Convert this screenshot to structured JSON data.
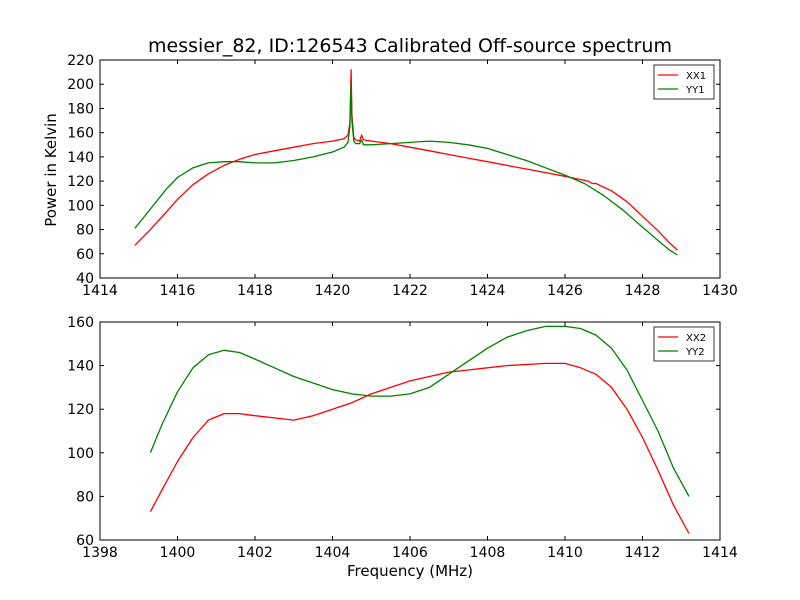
{
  "figure": {
    "title": "messier_82, ID:126543 Calibrated Off-source spectrum",
    "ylabel": "Power in Kelvin",
    "xlabel": "Frequency (MHz)"
  },
  "chart_data": [
    {
      "type": "line",
      "xlim": [
        1414,
        1430
      ],
      "ylim": [
        40,
        220
      ],
      "xticks": [
        "1414",
        "1416",
        "1418",
        "1420",
        "1422",
        "1424",
        "1426",
        "1428",
        "1430"
      ],
      "yticks": [
        "40",
        "60",
        "80",
        "100",
        "120",
        "140",
        "160",
        "180",
        "200",
        "220"
      ],
      "legend": "top-right",
      "series": [
        {
          "name": "XX1",
          "color": "#ff0000",
          "x": [
            1414.9,
            1415.3,
            1415.7,
            1416.0,
            1416.4,
            1416.8,
            1417.2,
            1417.6,
            1418.0,
            1418.5,
            1419.0,
            1419.5,
            1420.0,
            1420.3,
            1420.4,
            1420.45,
            1420.48,
            1420.5,
            1420.55,
            1420.6,
            1420.7,
            1420.75,
            1420.8,
            1421.0,
            1421.5,
            1422.0,
            1422.5,
            1423.0,
            1423.5,
            1424.0,
            1424.5,
            1425.0,
            1425.5,
            1426.0,
            1426.3,
            1426.6,
            1426.7,
            1426.8,
            1427.2,
            1427.6,
            1428.0,
            1428.4,
            1428.7,
            1428.9
          ],
          "y": [
            67,
            80,
            94,
            105,
            117,
            126,
            133,
            138,
            142,
            145,
            148,
            151,
            153,
            155,
            158,
            168,
            212,
            175,
            156,
            154,
            153,
            158,
            154,
            153,
            151,
            148,
            145,
            142,
            139,
            136,
            133,
            130,
            127,
            124,
            122,
            120,
            118,
            118,
            112,
            103,
            91,
            79,
            69,
            63
          ]
        },
        {
          "name": "YY1",
          "color": "#008000",
          "x": [
            1414.9,
            1415.3,
            1415.7,
            1416.0,
            1416.4,
            1416.8,
            1417.2,
            1417.6,
            1418.0,
            1418.5,
            1419.0,
            1419.5,
            1420.0,
            1420.3,
            1420.4,
            1420.45,
            1420.48,
            1420.5,
            1420.55,
            1420.6,
            1420.7,
            1420.75,
            1420.8,
            1421.0,
            1421.5,
            1422.0,
            1422.5,
            1423.0,
            1423.5,
            1424.0,
            1424.5,
            1425.0,
            1425.5,
            1426.0,
            1426.5,
            1427.0,
            1427.5,
            1428.0,
            1428.4,
            1428.7,
            1428.9
          ],
          "y": [
            81,
            97,
            113,
            123,
            131,
            135,
            136,
            136,
            135,
            135,
            137,
            140,
            144,
            148,
            152,
            165,
            200,
            170,
            153,
            151,
            151,
            154,
            150,
            150,
            151,
            152,
            153,
            152,
            150,
            147,
            142,
            137,
            131,
            125,
            118,
            108,
            96,
            82,
            71,
            63,
            59
          ]
        }
      ]
    },
    {
      "type": "line",
      "xlim": [
        1398,
        1414
      ],
      "ylim": [
        60,
        160
      ],
      "xticks": [
        "1398",
        "1400",
        "1402",
        "1404",
        "1406",
        "1408",
        "1410",
        "1412",
        "1414"
      ],
      "yticks": [
        "60",
        "80",
        "100",
        "120",
        "140",
        "160"
      ],
      "legend": "top-right",
      "series": [
        {
          "name": "XX2",
          "color": "#ff0000",
          "x": [
            1399.3,
            1399.6,
            1400.0,
            1400.4,
            1400.8,
            1401.2,
            1401.6,
            1402.0,
            1402.5,
            1403.0,
            1403.5,
            1404.0,
            1404.5,
            1405.0,
            1405.5,
            1406.0,
            1406.5,
            1407.0,
            1407.5,
            1408.0,
            1408.5,
            1409.0,
            1409.5,
            1410.0,
            1410.4,
            1410.8,
            1411.2,
            1411.6,
            1412.0,
            1412.4,
            1412.8,
            1413.2
          ],
          "y": [
            73,
            83,
            96,
            107,
            115,
            118,
            118,
            117,
            116,
            115,
            117,
            120,
            123,
            127,
            130,
            133,
            135,
            137,
            138,
            139,
            140,
            140.5,
            141,
            141,
            139,
            136,
            130,
            120,
            107,
            92,
            76,
            63
          ]
        },
        {
          "name": "YY2",
          "color": "#008000",
          "x": [
            1399.3,
            1399.6,
            1400.0,
            1400.4,
            1400.8,
            1401.2,
            1401.6,
            1402.0,
            1402.5,
            1403.0,
            1403.5,
            1404.0,
            1404.5,
            1405.0,
            1405.5,
            1406.0,
            1406.5,
            1407.0,
            1407.5,
            1408.0,
            1408.5,
            1409.0,
            1409.5,
            1410.0,
            1410.4,
            1410.8,
            1411.2,
            1411.6,
            1412.0,
            1412.4,
            1412.8,
            1413.2
          ],
          "y": [
            100,
            113,
            128,
            139,
            145,
            147,
            146,
            143,
            139,
            135,
            132,
            129,
            127,
            126,
            126,
            127,
            130,
            136,
            142,
            148,
            153,
            156,
            158,
            158,
            157,
            154,
            148,
            138,
            124,
            110,
            93,
            80
          ]
        }
      ]
    }
  ]
}
